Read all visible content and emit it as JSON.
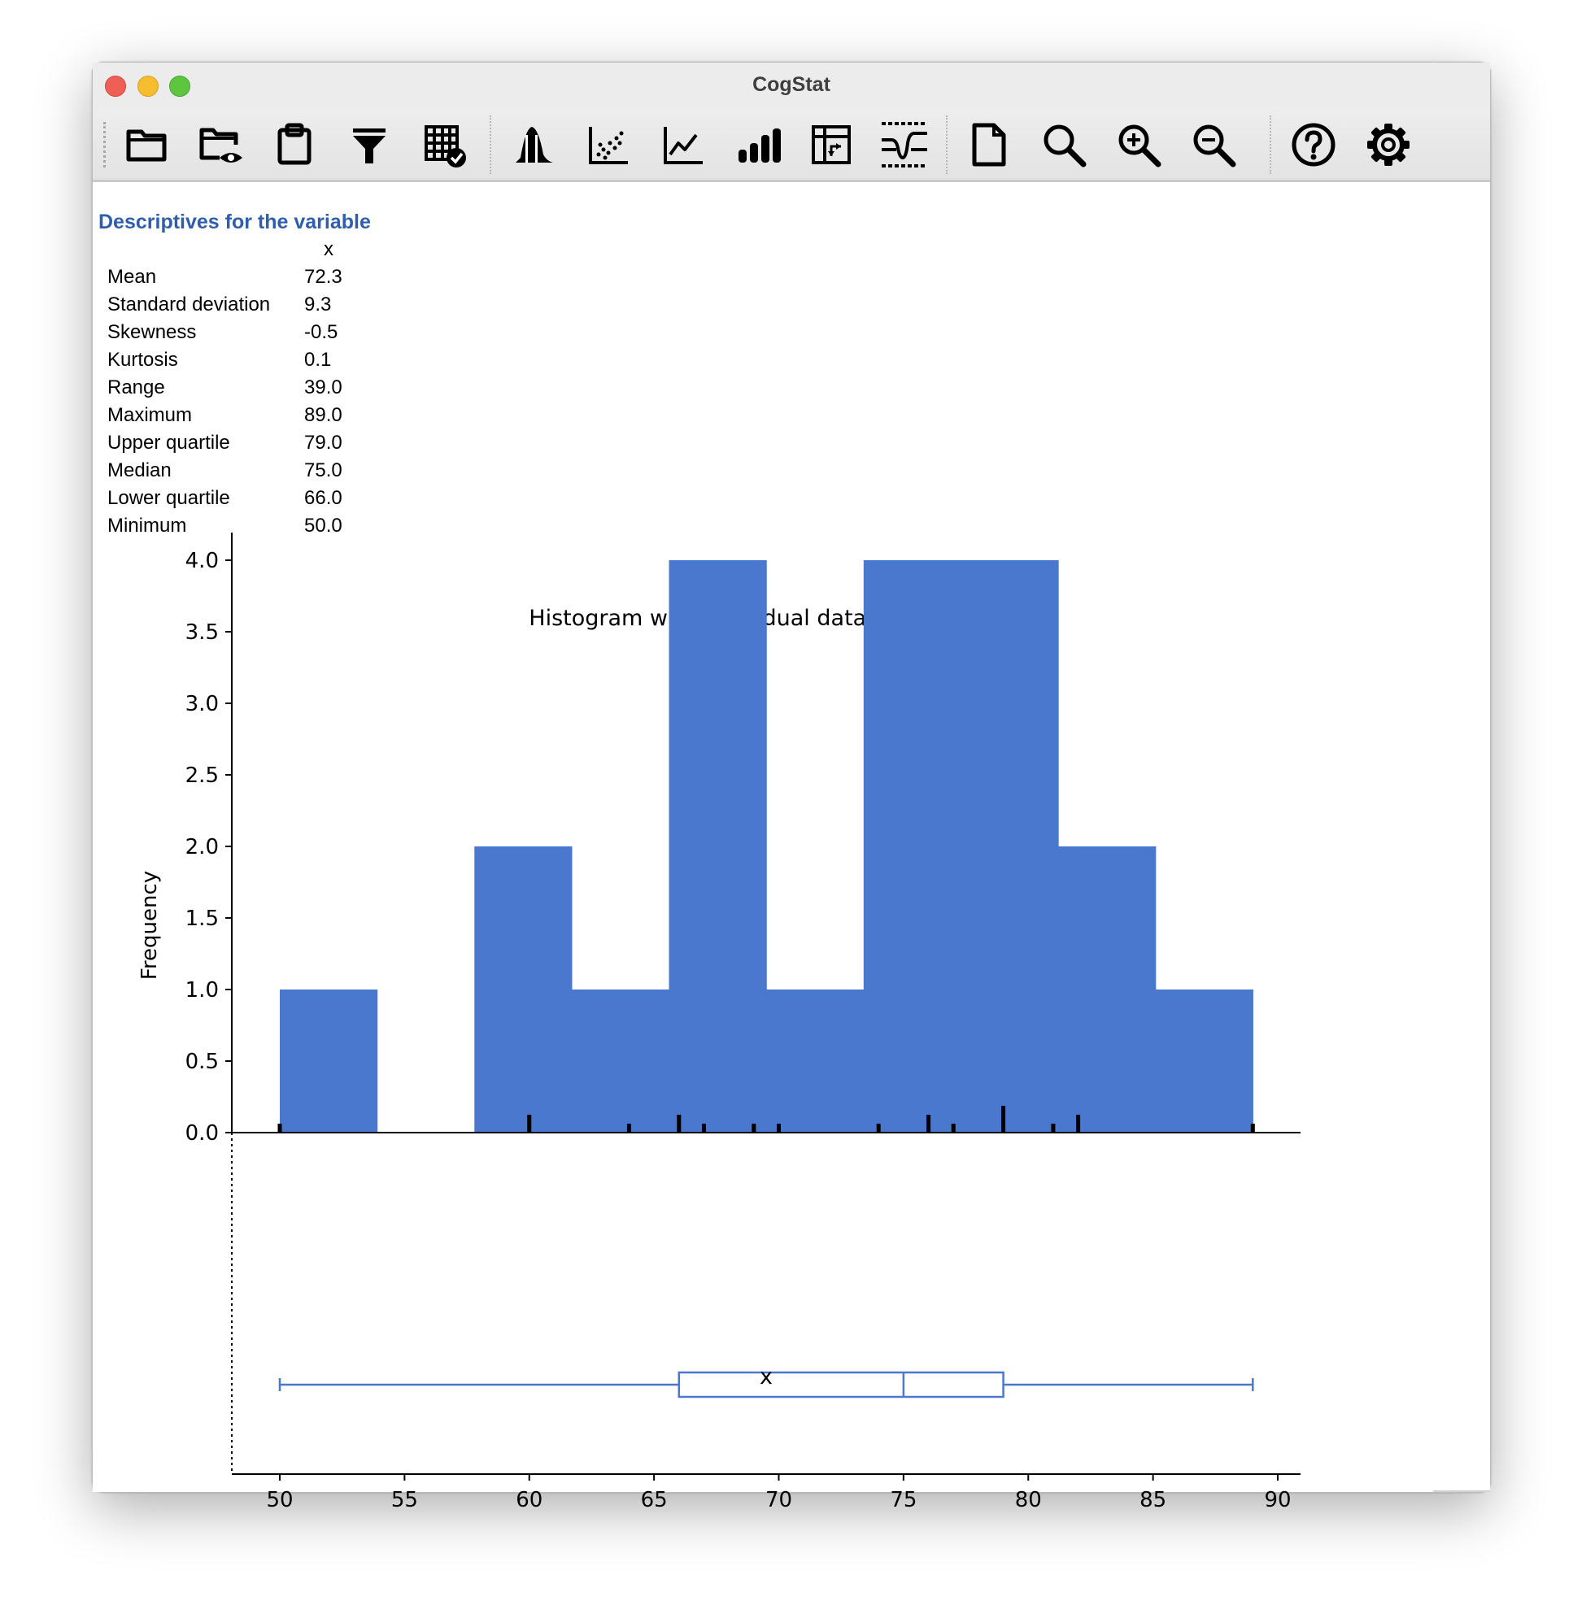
{
  "window": {
    "title": "CogStat"
  },
  "toolbar": {
    "icons": [
      "open-folder-icon",
      "open-demo-data-icon",
      "paste-data-icon",
      "filter-icon",
      "data-table-check-icon",
      "distribution-icon",
      "scatter-plot-icon",
      "line-chart-icon",
      "bar-chart-icon",
      "pivot-table-icon",
      "compare-groups-icon",
      "new-document-icon",
      "search-icon",
      "zoom-in-icon",
      "zoom-out-icon",
      "help-icon",
      "settings-gear-icon"
    ]
  },
  "descriptives": {
    "title": "Descriptives for the variable",
    "column_header": "x",
    "rows": [
      {
        "label": "Mean",
        "value": "72.3"
      },
      {
        "label": "Standard deviation",
        "value": "9.3"
      },
      {
        "label": "Skewness",
        "value": "-0.5"
      },
      {
        "label": "Kurtosis",
        "value": "0.1"
      },
      {
        "label": "Range",
        "value": "39.0"
      },
      {
        "label": "Maximum",
        "value": "89.0"
      },
      {
        "label": "Upper quartile",
        "value": "79.0"
      },
      {
        "label": "Median",
        "value": "75.0"
      },
      {
        "label": "Lower quartile",
        "value": "66.0"
      },
      {
        "label": "Minimum",
        "value": "50.0"
      }
    ]
  },
  "colors": {
    "bar": "#4a78cf",
    "boxplot": "#4a78cf",
    "heading": "#2f5eae"
  },
  "chart_data": {
    "type": "bar",
    "title": "Histogram with individual data and boxplot",
    "xlabel": "x",
    "ylabel": "Frequency",
    "bins": [
      {
        "x0": 50,
        "x1": 53.9,
        "count": 1
      },
      {
        "x0": 53.9,
        "x1": 57.8,
        "count": 0
      },
      {
        "x0": 57.8,
        "x1": 61.7,
        "count": 2
      },
      {
        "x0": 61.7,
        "x1": 65.6,
        "count": 1
      },
      {
        "x0": 65.6,
        "x1": 69.5,
        "count": 4
      },
      {
        "x0": 69.5,
        "x1": 73.4,
        "count": 1
      },
      {
        "x0": 73.4,
        "x1": 77.3,
        "count": 4
      },
      {
        "x0": 77.3,
        "x1": 81.2,
        "count": 4
      },
      {
        "x0": 81.2,
        "x1": 85.1,
        "count": 2
      },
      {
        "x0": 85.1,
        "x1": 89,
        "count": 1
      }
    ],
    "individual_data": [
      {
        "x": 50,
        "count": 1
      },
      {
        "x": 60,
        "count": 2
      },
      {
        "x": 64,
        "count": 1
      },
      {
        "x": 66,
        "count": 2
      },
      {
        "x": 67,
        "count": 1
      },
      {
        "x": 69,
        "count": 1
      },
      {
        "x": 70,
        "count": 1
      },
      {
        "x": 74,
        "count": 1
      },
      {
        "x": 76,
        "count": 2
      },
      {
        "x": 77,
        "count": 1
      },
      {
        "x": 79,
        "count": 3
      },
      {
        "x": 81,
        "count": 1
      },
      {
        "x": 82,
        "count": 2
      },
      {
        "x": 89,
        "count": 1
      }
    ],
    "boxplot": {
      "min": 50,
      "q1": 66,
      "median": 75,
      "q3": 79,
      "max": 89
    },
    "xlim": [
      48.1,
      91
    ],
    "ylim": [
      0,
      4.2
    ],
    "x_ticks": [
      50,
      55,
      60,
      65,
      70,
      75,
      80,
      85,
      90
    ],
    "y_ticks": [
      "0.0",
      "0.5",
      "1.0",
      "1.5",
      "2.0",
      "2.5",
      "3.0",
      "3.5",
      "4.0"
    ],
    "grid": false
  }
}
